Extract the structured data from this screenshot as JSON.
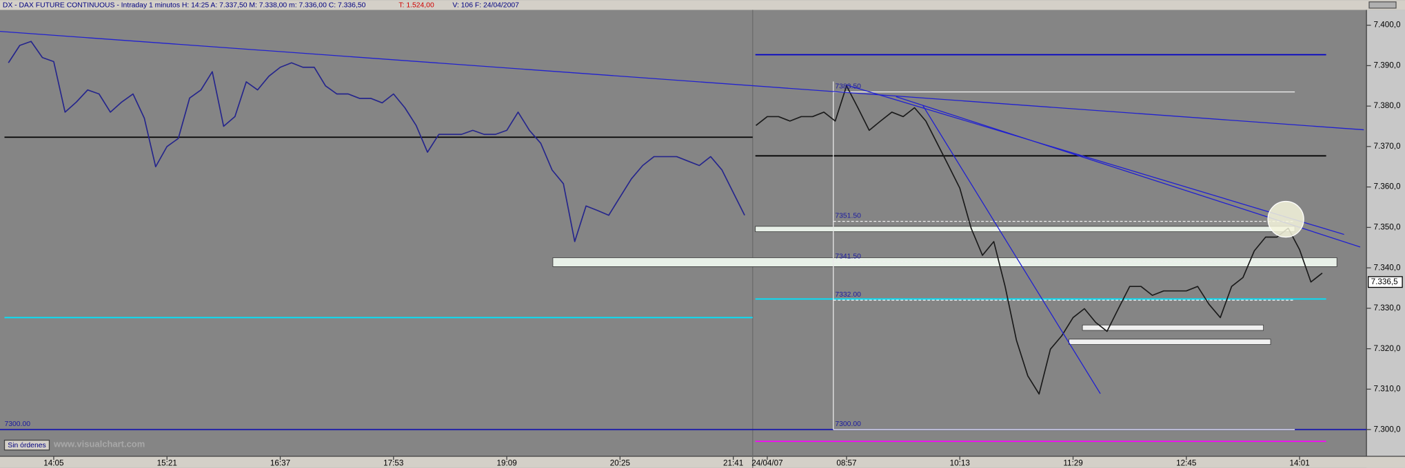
{
  "chart_data": {
    "type": "line",
    "title": "DX - DAX FUTURE CONTINUOUS - Intraday 1 minutos  H: 14:25  A: 7.337,50  M: 7.338,00  m: 7.336,00  C: 7.336,50",
    "title_alert": "T: 1.524,00",
    "title_tail": "V: 106  F: 24/04/2007",
    "categories": [
      null,
      null,
      null,
      null,
      "14:05",
      null,
      null,
      null,
      null,
      null,
      null,
      null,
      null,
      null,
      "15:21",
      null,
      null,
      null,
      null,
      null,
      null,
      null,
      null,
      null,
      "16:37",
      null,
      null,
      null,
      null,
      null,
      null,
      null,
      null,
      null,
      "17:53",
      null,
      null,
      null,
      null,
      null,
      null,
      null,
      null,
      null,
      "19:09",
      null,
      null,
      null,
      null,
      null,
      null,
      null,
      null,
      null,
      "20:25",
      null,
      null,
      null,
      null,
      null,
      null,
      null,
      null,
      null,
      "21:41",
      null,
      null,
      "24/04/07",
      null,
      null,
      null,
      null,
      null,
      null,
      "08:57",
      null,
      null,
      null,
      null,
      null,
      null,
      null,
      null,
      null,
      "10:13",
      null,
      null,
      null,
      null,
      null,
      null,
      null,
      null,
      null,
      "11:29",
      null,
      null,
      null,
      null,
      null,
      null,
      null,
      null,
      null,
      "12:45",
      null,
      null,
      null,
      null,
      null,
      null,
      null,
      null,
      null,
      "14:01",
      null,
      null
    ],
    "series": [
      {
        "color": "#25258c",
        "values": [
          7390.7,
          7395,
          7396,
          7392,
          7391,
          7378.5,
          7381,
          7384,
          7383,
          7378.5,
          7381,
          7383,
          7377,
          7365,
          7370,
          7372,
          7382,
          7384,
          7388.5,
          7375,
          7377.4,
          7386,
          7384,
          7387.4,
          7389.6,
          7390.7,
          7389.6,
          7389.6,
          7385,
          7383,
          7383,
          7381.9,
          7381.9,
          7380.8,
          7383,
          7379.6,
          7375.2,
          7368.6,
          7373,
          7373,
          7373,
          7374,
          7373,
          7373,
          7374,
          7378.5,
          7374,
          7370.8,
          7364.2,
          7360.8,
          7346.5,
          7355.3,
          7354.2,
          7353,
          7357.5,
          7362,
          7365.3,
          7367.5,
          7367.5,
          7367.5,
          7366.4,
          7365.3,
          7367.5,
          7364.2,
          7358.6,
          7353,
          null,
          null,
          null,
          null,
          null,
          null,
          null,
          null,
          null,
          null,
          null,
          null,
          null,
          null,
          null,
          null,
          null,
          null,
          null,
          null,
          null,
          null,
          null,
          null,
          null,
          null,
          null,
          null,
          null,
          null,
          null,
          null,
          null,
          null,
          null,
          null,
          null,
          null,
          null,
          null,
          null,
          null,
          null,
          null,
          null,
          null,
          null,
          null,
          null,
          null,
          null
        ]
      },
      {
        "color": "#1a1a1a",
        "values": [
          null,
          null,
          null,
          null,
          null,
          null,
          null,
          null,
          null,
          null,
          null,
          null,
          null,
          null,
          null,
          null,
          null,
          null,
          null,
          null,
          null,
          null,
          null,
          null,
          null,
          null,
          null,
          null,
          null,
          null,
          null,
          null,
          null,
          null,
          null,
          null,
          null,
          null,
          null,
          null,
          null,
          null,
          null,
          null,
          null,
          null,
          null,
          null,
          null,
          null,
          null,
          null,
          null,
          null,
          null,
          null,
          null,
          null,
          null,
          null,
          null,
          null,
          null,
          null,
          null,
          null,
          7375.2,
          7377.4,
          7377.4,
          7376.3,
          7377.4,
          7377.4,
          7378.5,
          7376.3,
          7385,
          7379.6,
          7374,
          7376.3,
          7378.5,
          7377.4,
          7379.6,
          7376.3,
          7370.8,
          7365.3,
          7359.7,
          7349.8,
          7343.1,
          7346.5,
          7335.4,
          7322.1,
          7313.3,
          7308.8,
          7319.9,
          7323.2,
          7327.7,
          7329.9,
          7326.5,
          7324.3,
          7329.9,
          7335.4,
          7335.4,
          7333.2,
          7334.3,
          7334.3,
          7334.3,
          7335.4,
          7331,
          7327.7,
          7335.4,
          7337.6,
          7344.2,
          7347.6,
          7347.6,
          7349.8,
          7344.5,
          7336.5,
          7338.7
        ]
      }
    ],
    "ylim": [
      7293.4,
      7404
    ],
    "yticks": [
      {
        "value": 7300,
        "label": "7.300,0"
      },
      {
        "value": 7310,
        "label": "7.310,0"
      },
      {
        "value": 7320,
        "label": "7.320,0"
      },
      {
        "value": 7330,
        "label": "7.330,0"
      },
      {
        "value": 7340,
        "label": "7.340,0"
      },
      {
        "value": 7350,
        "label": "7.350,0"
      },
      {
        "value": 7360,
        "label": "7.360,0"
      },
      {
        "value": 7370,
        "label": "7.370,0"
      },
      {
        "value": 7380,
        "label": "7.380,0"
      },
      {
        "value": 7390,
        "label": "7.390,0"
      },
      {
        "value": 7400,
        "label": "7.400,0"
      }
    ],
    "last_price": {
      "value": 7336.5,
      "label": "7.336,5"
    },
    "levels": [
      {
        "value": 7372.3,
        "color": "#000000"
      },
      {
        "value": 7367.7,
        "color": "#000000"
      },
      {
        "value": 7392.7,
        "color": "#0000c8"
      },
      {
        "value": 7327.7,
        "color": "#00e5ff"
      },
      {
        "value": 7332.3,
        "color": "#00e5ff"
      },
      {
        "value": 7297.1,
        "color": "#ff00ff"
      },
      {
        "value": 7300,
        "color": "#1c1caa"
      },
      {
        "value": 7349.6,
        "color": "#e8f0e8"
      },
      {
        "value": 7341.4,
        "color": "#e8f0e8"
      },
      {
        "value": 7325.2,
        "color": "#f0f0f0"
      },
      {
        "value": 7321.7,
        "color": "#f0f0f0"
      }
    ],
    "annotations": [
      {
        "value": 7383.5,
        "label": "7383.50"
      },
      {
        "value": 7351.5,
        "label": "7351.50"
      },
      {
        "value": 7341.5,
        "label": "7341.50"
      },
      {
        "value": 7332,
        "label": "7332.00"
      },
      {
        "value": 7300,
        "label": "7300.00"
      },
      {
        "value": 7300,
        "label": "7300.00"
      }
    ],
    "orders_button": "Sin órdenes",
    "watermark": "www.visualchart.com"
  }
}
